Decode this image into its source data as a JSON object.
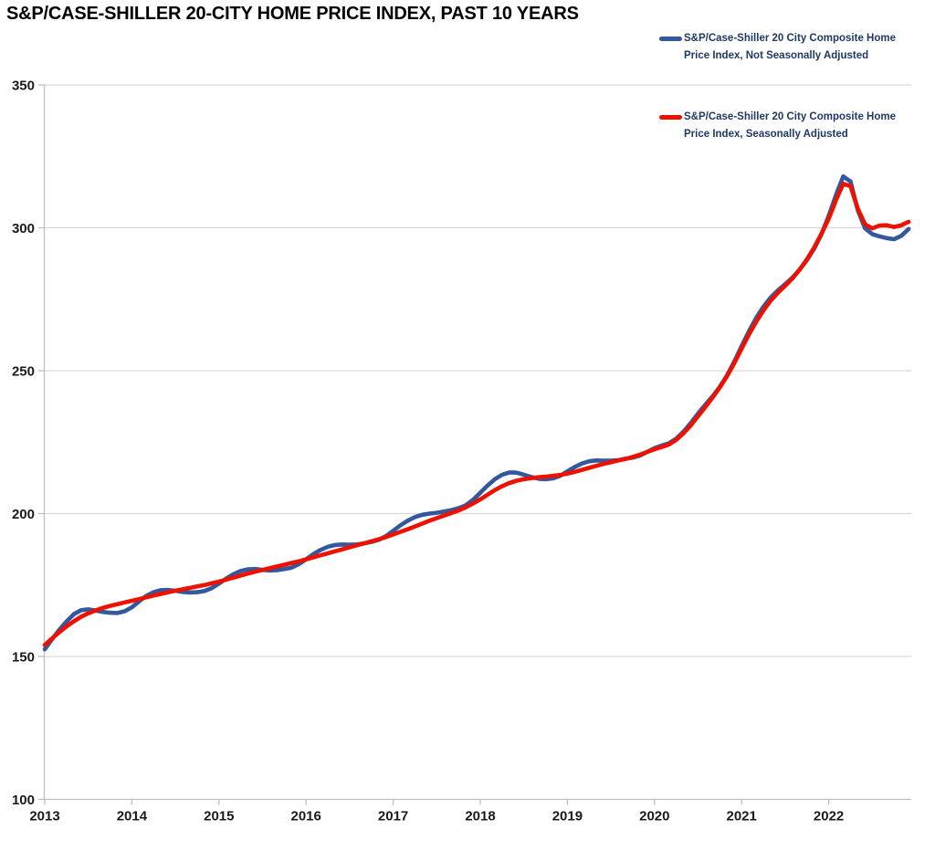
{
  "chart_data": {
    "type": "line",
    "title": "S&P/CASE-SHILLER 20-CITY HOME PRICE INDEX, PAST 10 YEARS",
    "frequency": "monthly",
    "start_month": "2013-04",
    "x_tick_labels": [
      "2013",
      "2014",
      "2015",
      "2016",
      "2017",
      "2018",
      "2019",
      "2020",
      "2021",
      "2022"
    ],
    "y_tick_labels": [
      "350",
      "300",
      "250",
      "200",
      "150",
      "100"
    ],
    "y_ticks": [
      350,
      300,
      250,
      200,
      150,
      100
    ],
    "ylim": [
      100,
      350
    ],
    "grid": "horizontal",
    "legend_position": "top-right",
    "colors": {
      "nsa_line": "#34589E",
      "sa_line": "#EE1100",
      "legend_text": "#1F3864",
      "gridline": "#D9D9D9",
      "axis": "#BFBFBF",
      "tick_text": "#1a1a1a",
      "title_text": "#000000"
    },
    "series": [
      {
        "id": "nsa",
        "name": "S&P/Case-Shiller 20 City Composite Home Price Index, Not Seasonally Adjusted",
        "label_lines": [
          "S&P/Case-Shiller 20 City Composite Home",
          "Price Index, Not Seasonally Adjusted"
        ],
        "color": "#34589E",
        "values": [
          152.5,
          156.0,
          159.3,
          162.2,
          164.8,
          166.2,
          166.5,
          166.1,
          165.6,
          165.3,
          165.2,
          165.8,
          167.2,
          169.3,
          171.2,
          172.5,
          173.2,
          173.3,
          173.0,
          172.6,
          172.4,
          172.5,
          172.9,
          173.9,
          175.5,
          177.3,
          178.8,
          179.9,
          180.5,
          180.6,
          180.3,
          180.1,
          180.2,
          180.6,
          181.1,
          182.3,
          184.0,
          185.8,
          187.3,
          188.4,
          189.0,
          189.2,
          189.1,
          189.2,
          189.6,
          190.1,
          190.8,
          192.1,
          194.0,
          195.9,
          197.5,
          198.8,
          199.6,
          200.0,
          200.3,
          200.7,
          201.2,
          201.9,
          202.9,
          204.8,
          207.3,
          209.8,
          212.0,
          213.6,
          214.4,
          214.3,
          213.6,
          212.8,
          212.2,
          212.0,
          212.3,
          213.2,
          214.8,
          216.3,
          217.5,
          218.3,
          218.6,
          218.5,
          218.5,
          218.7,
          219.2,
          219.6,
          220.3,
          221.6,
          222.9,
          223.8,
          224.6,
          226.2,
          228.7,
          231.7,
          235.0,
          238.1,
          241.0,
          244.4,
          248.4,
          253.3,
          258.6,
          263.7,
          268.4,
          272.4,
          275.6,
          278.1,
          280.3,
          282.6,
          285.4,
          288.7,
          292.7,
          297.7,
          304.2,
          311.5,
          318.0,
          316.2,
          306.2,
          299.8,
          297.8,
          297.0,
          296.4,
          296.0,
          297.2,
          299.6
        ]
      },
      {
        "id": "sa",
        "name": "S&P/Case-Shiller 20 City Composite Home Price Index, Seasonally Adjusted",
        "label_lines": [
          "S&P/Case-Shiller 20 City Composite Home",
          "Price Index, Seasonally Adjusted"
        ],
        "color": "#EE1100",
        "values": [
          154.0,
          156.3,
          158.5,
          160.5,
          162.3,
          163.9,
          165.1,
          166.1,
          167.0,
          167.7,
          168.3,
          168.9,
          169.5,
          170.1,
          170.7,
          171.3,
          171.9,
          172.5,
          173.0,
          173.5,
          174.0,
          174.5,
          175.0,
          175.6,
          176.2,
          176.9,
          177.6,
          178.3,
          179.0,
          179.7,
          180.3,
          180.9,
          181.5,
          182.1,
          182.7,
          183.3,
          184.0,
          184.7,
          185.4,
          186.1,
          186.8,
          187.5,
          188.2,
          188.9,
          189.6,
          190.3,
          191.0,
          191.8,
          192.7,
          193.6,
          194.5,
          195.5,
          196.5,
          197.5,
          198.4,
          199.3,
          200.2,
          201.1,
          202.2,
          203.5,
          205.0,
          206.6,
          208.2,
          209.6,
          210.7,
          211.5,
          212.0,
          212.4,
          212.7,
          212.9,
          213.2,
          213.5,
          214.0,
          214.6,
          215.3,
          216.0,
          216.7,
          217.4,
          218.0,
          218.6,
          219.1,
          219.8,
          220.6,
          221.6,
          222.5,
          223.3,
          224.2,
          225.8,
          228.1,
          230.9,
          234.1,
          237.3,
          240.6,
          244.2,
          248.1,
          252.7,
          257.7,
          262.6,
          267.1,
          271.1,
          274.5,
          277.3,
          279.7,
          282.3,
          285.4,
          289.0,
          293.1,
          297.9,
          303.2,
          309.7,
          315.4,
          314.6,
          306.7,
          301.2,
          299.8,
          300.8,
          300.9,
          300.3,
          300.9,
          302.1
        ]
      }
    ]
  }
}
